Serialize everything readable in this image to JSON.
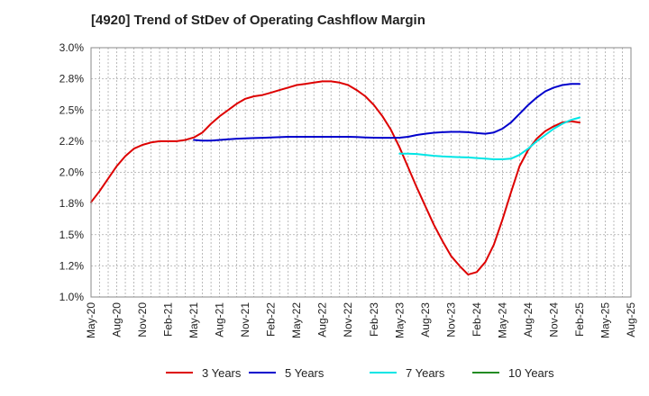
{
  "chart_data": {
    "type": "line",
    "title": "[4920]  Trend of StDev of Operating Cashflow Margin",
    "xlabel": "",
    "ylabel": "",
    "x_ticks": [
      "May-20",
      "Aug-20",
      "Nov-20",
      "Feb-21",
      "May-21",
      "Aug-21",
      "Nov-21",
      "Feb-22",
      "May-22",
      "Aug-22",
      "Nov-22",
      "Feb-23",
      "May-23",
      "Aug-23",
      "Nov-23",
      "Feb-24",
      "May-24",
      "Aug-24",
      "Nov-24",
      "Feb-25",
      "May-25",
      "Aug-25"
    ],
    "y_ticks": [
      "1.0%",
      "1.2%",
      "1.5%",
      "1.8%",
      "2.0%",
      "2.2%",
      "2.5%",
      "2.8%",
      "3.0%"
    ],
    "ylim": [
      1.0,
      3.0
    ],
    "xlim": [
      "2020-05",
      "2025-08"
    ],
    "grid": true,
    "legend_position": "bottom",
    "series": [
      {
        "name": "3 Years",
        "color": "#dd0000",
        "x": [
          "2020-05",
          "2020-06",
          "2020-07",
          "2020-08",
          "2020-09",
          "2020-10",
          "2020-11",
          "2020-12",
          "2021-01",
          "2021-02",
          "2021-03",
          "2021-04",
          "2021-05",
          "2021-06",
          "2021-07",
          "2021-08",
          "2021-09",
          "2021-10",
          "2021-11",
          "2021-12",
          "2022-01",
          "2022-02",
          "2022-03",
          "2022-04",
          "2022-05",
          "2022-06",
          "2022-07",
          "2022-08",
          "2022-09",
          "2022-10",
          "2022-11",
          "2022-12",
          "2023-01",
          "2023-02",
          "2023-03",
          "2023-04",
          "2023-05",
          "2023-06",
          "2023-07",
          "2023-08",
          "2023-09",
          "2023-10",
          "2023-11",
          "2023-12",
          "2024-01",
          "2024-02",
          "2024-03",
          "2024-04",
          "2024-05",
          "2024-06",
          "2024-07",
          "2024-08",
          "2024-09",
          "2024-10",
          "2024-11",
          "2024-12",
          "2025-01",
          "2025-02"
        ],
        "values": [
          1.76,
          1.85,
          1.95,
          2.05,
          2.13,
          2.19,
          2.22,
          2.24,
          2.25,
          2.25,
          2.25,
          2.26,
          2.28,
          2.32,
          2.39,
          2.45,
          2.5,
          2.55,
          2.59,
          2.61,
          2.62,
          2.64,
          2.66,
          2.68,
          2.7,
          2.71,
          2.72,
          2.73,
          2.73,
          2.72,
          2.7,
          2.66,
          2.61,
          2.54,
          2.45,
          2.34,
          2.2,
          2.04,
          1.88,
          1.73,
          1.58,
          1.45,
          1.33,
          1.25,
          1.18,
          1.2,
          1.28,
          1.42,
          1.62,
          1.84,
          2.05,
          2.18,
          2.27,
          2.33,
          2.37,
          2.4,
          2.41,
          2.4
        ]
      },
      {
        "name": "5 Years",
        "color": "#0000cc",
        "x": [
          "2021-05",
          "2021-06",
          "2021-07",
          "2021-08",
          "2021-09",
          "2021-10",
          "2021-11",
          "2021-12",
          "2022-01",
          "2022-02",
          "2022-03",
          "2022-04",
          "2022-05",
          "2022-06",
          "2022-07",
          "2022-08",
          "2022-09",
          "2022-10",
          "2022-11",
          "2022-12",
          "2023-01",
          "2023-02",
          "2023-03",
          "2023-04",
          "2023-05",
          "2023-06",
          "2023-07",
          "2023-08",
          "2023-09",
          "2023-10",
          "2023-11",
          "2023-12",
          "2024-01",
          "2024-02",
          "2024-03",
          "2024-04",
          "2024-05",
          "2024-06",
          "2024-07",
          "2024-08",
          "2024-09",
          "2024-10",
          "2024-11",
          "2024-12",
          "2025-01",
          "2025-02"
        ],
        "values": [
          2.26,
          2.255,
          2.255,
          2.26,
          2.265,
          2.27,
          2.272,
          2.275,
          2.277,
          2.28,
          2.282,
          2.285,
          2.285,
          2.285,
          2.285,
          2.285,
          2.285,
          2.285,
          2.285,
          2.283,
          2.28,
          2.278,
          2.277,
          2.277,
          2.278,
          2.285,
          2.3,
          2.31,
          2.318,
          2.322,
          2.325,
          2.325,
          2.322,
          2.315,
          2.31,
          2.32,
          2.35,
          2.4,
          2.47,
          2.54,
          2.6,
          2.65,
          2.68,
          2.7,
          2.71,
          2.71
        ]
      },
      {
        "name": "7 Years",
        "color": "#00e5e5",
        "x": [
          "2023-05",
          "2023-06",
          "2023-07",
          "2023-08",
          "2023-09",
          "2023-10",
          "2023-11",
          "2023-12",
          "2024-01",
          "2024-02",
          "2024-03",
          "2024-04",
          "2024-05",
          "2024-06",
          "2024-07",
          "2024-08",
          "2024-09",
          "2024-10",
          "2024-11",
          "2024-12",
          "2025-01",
          "2025-02"
        ],
        "values": [
          2.15,
          2.15,
          2.147,
          2.14,
          2.133,
          2.128,
          2.125,
          2.122,
          2.12,
          2.115,
          2.11,
          2.105,
          2.105,
          2.11,
          2.14,
          2.19,
          2.25,
          2.3,
          2.35,
          2.39,
          2.42,
          2.44
        ]
      },
      {
        "name": "10 Years",
        "color": "#228b22",
        "x": [],
        "values": []
      }
    ]
  }
}
